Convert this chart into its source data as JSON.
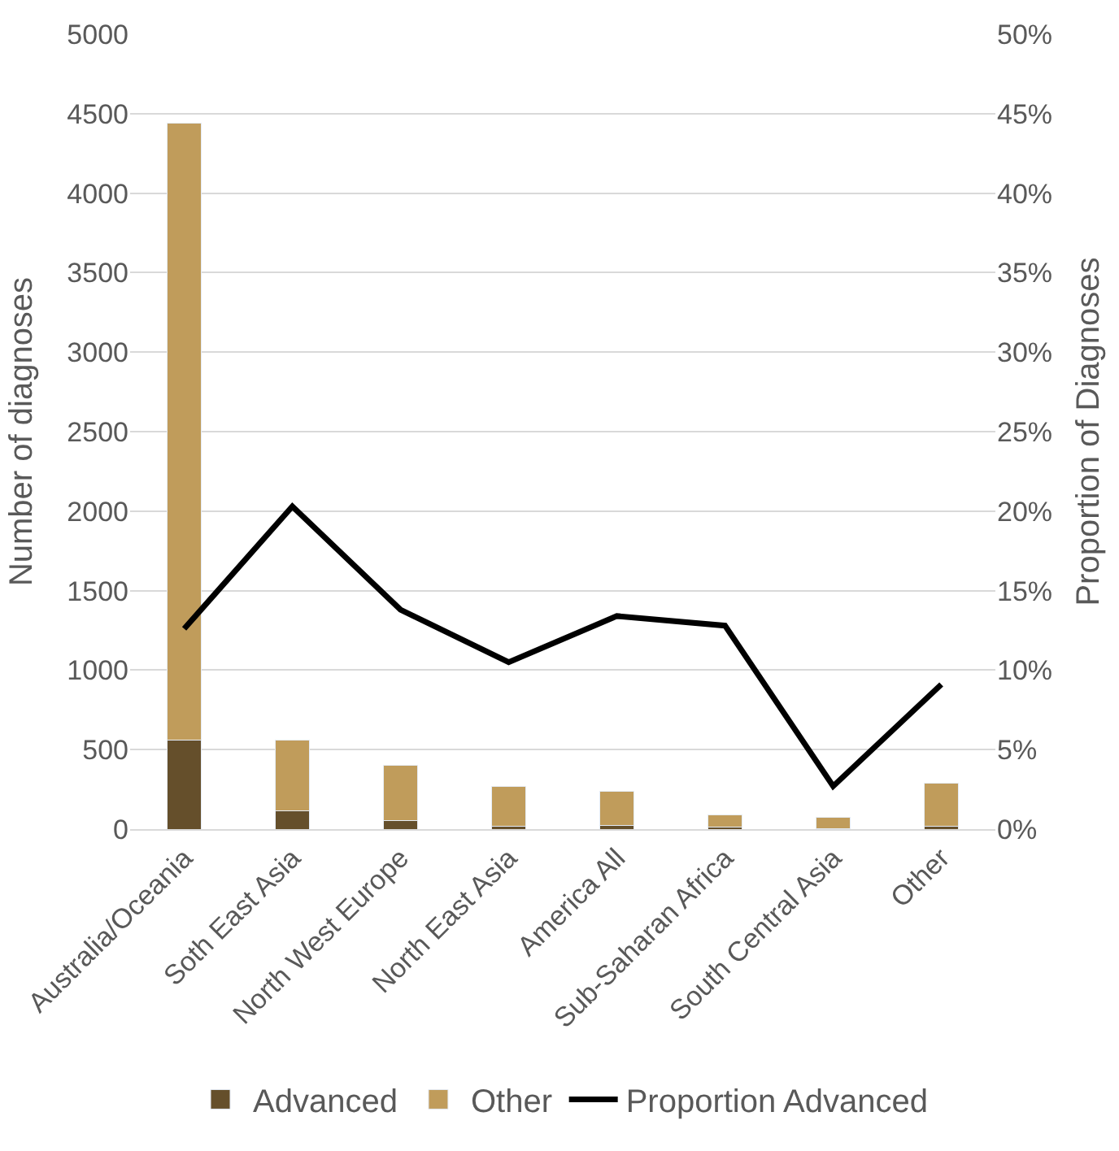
{
  "chart_data": {
    "type": "bar",
    "stacked": true,
    "ylabel": "Number of diagnoses",
    "y2label": "Proportion of Diagnoses",
    "categories": [
      "Australia/Oceania",
      "Soth East Asia",
      "North West Europe",
      "North East Asia",
      "America All",
      "Sub-Saharan Africa",
      "South Central Asia",
      "Other"
    ],
    "series": [
      {
        "name": "Advanced",
        "color": "#654f2b",
        "values": [
          560,
          115,
          55,
          20,
          25,
          12,
          2,
          20
        ]
      },
      {
        "name": "Other",
        "color": "#c09c5b",
        "values": [
          3880,
          445,
          345,
          250,
          215,
          78,
          73,
          270
        ]
      },
      {
        "name": "Proportion Advanced",
        "type": "line",
        "axis": "y2",
        "color": "#000000",
        "values": [
          12.6,
          20.3,
          13.8,
          10.5,
          13.4,
          12.8,
          2.7,
          9.1
        ]
      }
    ],
    "ylim": [
      0,
      5000
    ],
    "yticks": [
      0,
      500,
      1000,
      1500,
      2000,
      2500,
      3000,
      3500,
      4000,
      4500,
      5000
    ],
    "y2lim": [
      0,
      50
    ],
    "y2ticks": [
      {
        "value": 0,
        "label": "0%"
      },
      {
        "value": 5,
        "label": "5%"
      },
      {
        "value": 10,
        "label": "10%"
      },
      {
        "value": 15,
        "label": "15%"
      },
      {
        "value": 20,
        "label": "20%"
      },
      {
        "value": 25,
        "label": "25%"
      },
      {
        "value": 30,
        "label": "30%"
      },
      {
        "value": 35,
        "label": "35%"
      },
      {
        "value": 40,
        "label": "40%"
      },
      {
        "value": 45,
        "label": "45%"
      },
      {
        "value": 50,
        "label": "50%"
      }
    ],
    "grid": "y",
    "legend": "bottom"
  }
}
